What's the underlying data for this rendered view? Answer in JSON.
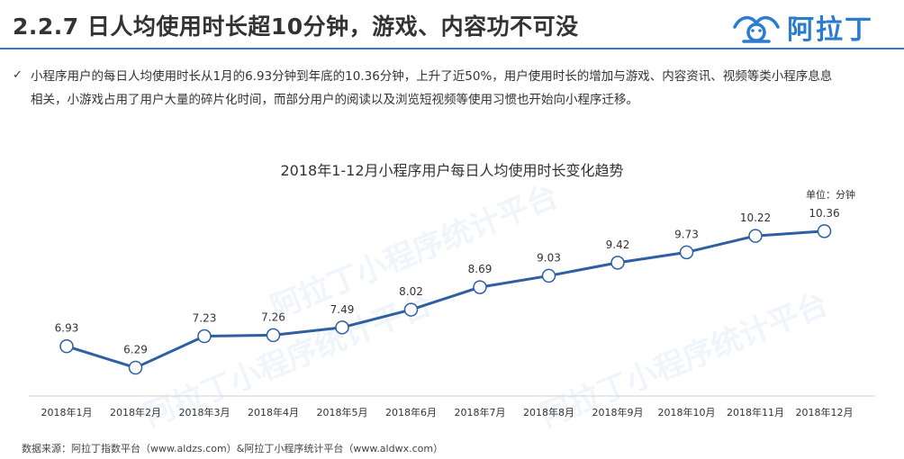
{
  "header": {
    "title": "2.2.7 日人均使用时长超10分钟，游戏、内容功不可没",
    "logo_text": "阿拉丁"
  },
  "summary": {
    "text": "小程序用户的每日人均使用时长从1月的6.93分钟到年底的10.36分钟，上升了近50%，用户使用时长的增加与游戏、内容资讯、视频等类小程序息息相关，小游戏占用了用户大量的碎片化时间，而部分用户的阅读以及浏览短视频等使用习惯也开始向小程序迁移。"
  },
  "watermark": {
    "text": "阿拉丁小程序统计平台"
  },
  "chart_data": {
    "type": "line",
    "title": "2018年1-12月小程序用户每日人均使用时长变化趋势",
    "unit": "单位：分钟",
    "categories": [
      "2018年1月",
      "2018年2月",
      "2018年3月",
      "2018年4月",
      "2018年5月",
      "2018年6月",
      "2018年7月",
      "2018年8月",
      "2018年9月",
      "2018年10月",
      "2018年11月",
      "2018年12月"
    ],
    "series": [
      {
        "values": [
          6.93,
          6.29,
          7.23,
          7.26,
          7.49,
          8.02,
          8.69,
          9.03,
          9.42,
          9.73,
          10.22,
          10.36
        ]
      }
    ],
    "ylim": [
      5.5,
      11.0
    ],
    "grid": false,
    "line_color": "#2e5fa3",
    "marker_fill": "#ffffff"
  },
  "footer": {
    "source": "数据来源：阿拉丁指数平台（www.aldzs.com）&阿拉丁小程序统计平台（www.aldwx.com）"
  }
}
